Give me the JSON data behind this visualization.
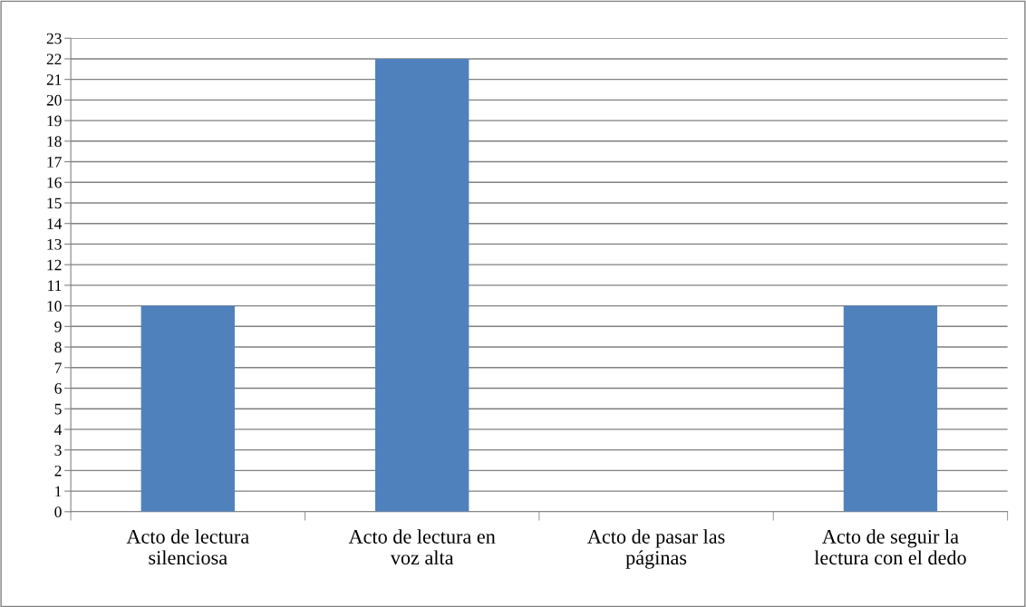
{
  "chart_data": {
    "type": "bar",
    "categories": [
      "Acto de lectura\nsilenciosa",
      "Acto de lectura en\nvoz alta",
      "Acto de pasar las\npáginas",
      "Acto de seguir la\nlectura con el dedo"
    ],
    "values": [
      10,
      22,
      0,
      10
    ],
    "color": "#4f81bd",
    "ylim": [
      0,
      23
    ],
    "yticks": [
      0,
      1,
      2,
      3,
      4,
      5,
      6,
      7,
      8,
      9,
      10,
      11,
      12,
      13,
      14,
      15,
      16,
      17,
      18,
      19,
      20,
      21,
      22,
      23
    ],
    "grid": "y"
  }
}
